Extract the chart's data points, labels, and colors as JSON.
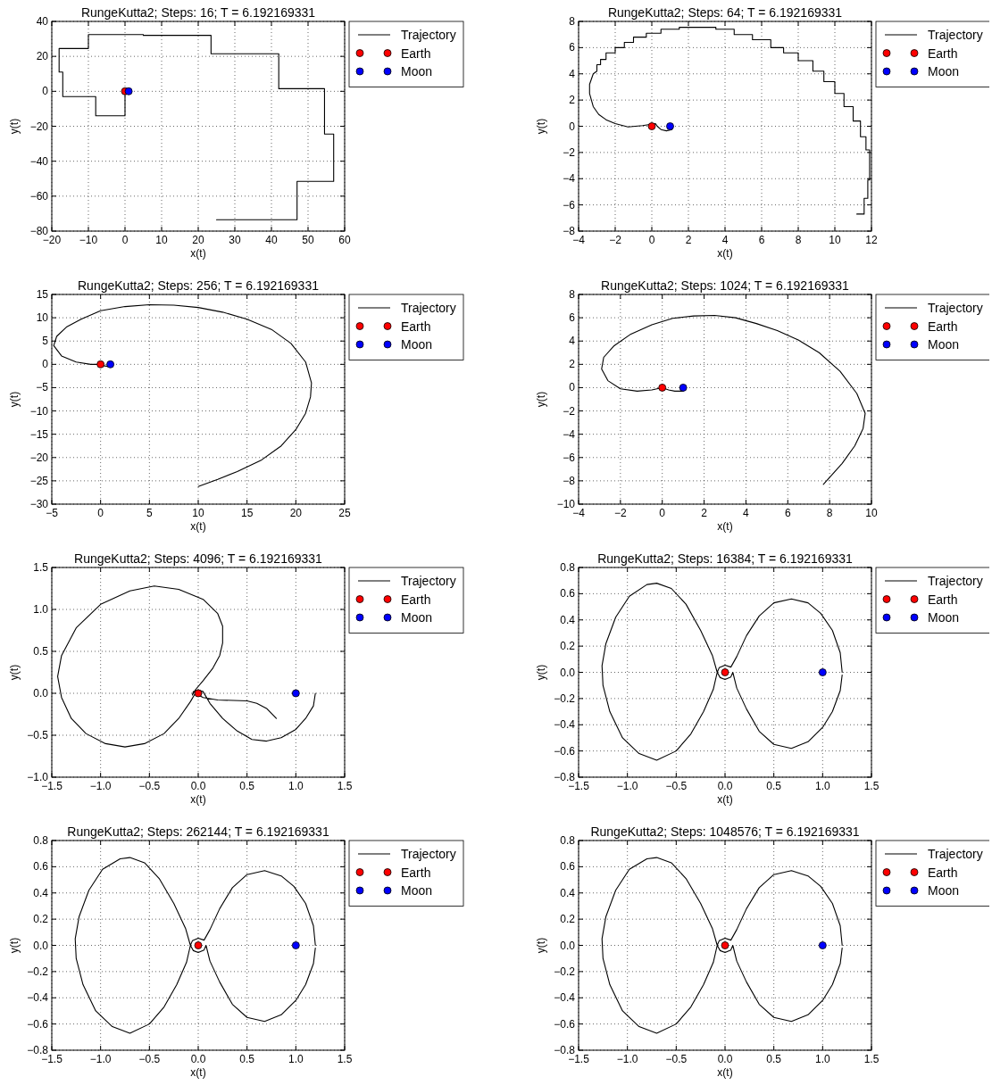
{
  "chart_data": [
    {
      "type": "line",
      "title": "RungeKutta2; Steps: 16; T = 6.192169331",
      "xlabel": "x(t)",
      "ylabel": "y(t)",
      "xlim": [
        -20,
        60
      ],
      "xticks": [
        -20,
        -10,
        0,
        10,
        20,
        30,
        40,
        50,
        60
      ],
      "ylim": [
        -80,
        40
      ],
      "yticks": [
        -80,
        -60,
        -40,
        -20,
        0,
        20,
        40
      ],
      "grid": true,
      "legend": "top right",
      "series": [
        {
          "name": "Trajectory",
          "type": "line",
          "color": "#000000",
          "marker": "none",
          "x": [
            0,
            0,
            -8,
            -8,
            -17,
            -17,
            -18,
            -18,
            -10,
            -10,
            5,
            5,
            23.5,
            23.5,
            42,
            42,
            54.5,
            54.5,
            57,
            57,
            47,
            47,
            25
          ],
          "values": [
            0,
            -14,
            -14,
            -3,
            -3,
            11,
            11,
            24.5,
            24.5,
            32.5,
            32.5,
            32,
            32,
            21.5,
            21.5,
            1.5,
            1.5,
            -24.5,
            -24.5,
            -51.5,
            -51.5,
            -73.5,
            -73.5
          ]
        },
        {
          "name": "Earth",
          "type": "scatter",
          "color": "#ff0000",
          "marker": "circle",
          "x": [
            0
          ],
          "values": [
            0
          ]
        },
        {
          "name": "Moon",
          "type": "scatter",
          "color": "#0000ff",
          "marker": "circle",
          "x": [
            1
          ],
          "values": [
            0
          ]
        }
      ]
    },
    {
      "type": "line",
      "title": "RungeKutta2; Steps: 64; T = 6.192169331",
      "xlabel": "x(t)",
      "ylabel": "y(t)",
      "xlim": [
        -4,
        12
      ],
      "xticks": [
        -4,
        -2,
        0,
        2,
        4,
        6,
        8,
        10,
        12
      ],
      "ylim": [
        -8,
        8
      ],
      "yticks": [
        -8,
        -6,
        -4,
        -2,
        0,
        2,
        4,
        6,
        8
      ],
      "grid": true,
      "legend": "top right",
      "series": [
        {
          "name": "Trajectory",
          "type": "line",
          "color": "#000000",
          "marker": "none",
          "x": [
            1.15,
            1.1,
            0.8,
            0.5,
            0.3,
            0.2,
            -0.5,
            -1.3,
            -2,
            -2.5,
            -2.9,
            -3.2,
            -3.4,
            -3.4,
            -3.2,
            -3,
            -3,
            -2.8,
            -2.8,
            -2.5,
            -2.5,
            -2,
            -2,
            -1.5,
            -1.5,
            -1,
            -1,
            -0.3,
            -0.3,
            0.5,
            0.5,
            1.5,
            1.5,
            3.5,
            3.5,
            4.5,
            4.5,
            5.5,
            5.5,
            6.5,
            6.5,
            7.2,
            7.2,
            8,
            8,
            8.8,
            8.8,
            9.4,
            9.4,
            10,
            10,
            10.5,
            10.5,
            11,
            11,
            11.4,
            11.4,
            11.7,
            11.7,
            11.9,
            11.9,
            11.8,
            11.8,
            11.6,
            11.6,
            11.2
          ],
          "values": [
            0,
            -0.25,
            -0.35,
            -0.25,
            0,
            0.2,
            0.05,
            -0.05,
            0.2,
            0.5,
            0.9,
            1.5,
            2.5,
            3.2,
            4,
            4.2,
            4.7,
            4.7,
            5.1,
            5.1,
            5.6,
            5.6,
            6,
            6,
            6.4,
            6.4,
            6.8,
            6.8,
            7.1,
            7.1,
            7.4,
            7.4,
            7.55,
            7.55,
            7.4,
            7.4,
            7,
            7,
            6.6,
            6.6,
            6,
            6,
            5.6,
            5.6,
            5,
            5,
            4.2,
            4.2,
            3.4,
            3.4,
            2.5,
            2.5,
            1.5,
            1.5,
            0.4,
            0.4,
            -0.8,
            -0.8,
            -1.8,
            -1.8,
            -4.1,
            -4.1,
            -5.5,
            -5.5,
            -6.7,
            -6.7
          ]
        },
        {
          "name": "Earth",
          "type": "scatter",
          "color": "#ff0000",
          "marker": "circle",
          "x": [
            0
          ],
          "values": [
            0
          ]
        },
        {
          "name": "Moon",
          "type": "scatter",
          "color": "#0000ff",
          "marker": "circle",
          "x": [
            1
          ],
          "values": [
            0
          ]
        }
      ]
    },
    {
      "type": "line",
      "title": "RungeKutta2; Steps: 256; T = 6.192169331",
      "xlabel": "x(t)",
      "ylabel": "y(t)",
      "xlim": [
        -5,
        25
      ],
      "xticks": [
        -5,
        0,
        5,
        10,
        15,
        20,
        25
      ],
      "ylim": [
        -30,
        15
      ],
      "yticks": [
        -30,
        -25,
        -20,
        -15,
        -10,
        -5,
        0,
        5,
        10,
        15
      ],
      "grid": true,
      "legend": "top right",
      "series": [
        {
          "name": "Trajectory",
          "type": "line",
          "color": "#000000",
          "marker": "none",
          "x": [
            1.2,
            0.9,
            0.3,
            0,
            -1,
            -2.5,
            -4,
            -4.8,
            -4.5,
            -3.5,
            -2,
            0,
            2.5,
            5,
            7.5,
            10,
            12.5,
            15,
            17.5,
            19.5,
            21,
            21.6,
            21.5,
            21,
            20,
            18.5,
            16.5,
            14,
            12,
            10
          ],
          "values": [
            0,
            -0.5,
            -0.3,
            0,
            0,
            0.5,
            1.8,
            4,
            6,
            8,
            9.7,
            11.5,
            12.4,
            12.8,
            12.7,
            12.2,
            11.2,
            9.7,
            7.5,
            4.5,
            0.5,
            -4,
            -7,
            -10.5,
            -14,
            -17.5,
            -20.5,
            -23,
            -24.7,
            -26.2
          ]
        },
        {
          "name": "Earth",
          "type": "scatter",
          "color": "#ff0000",
          "marker": "circle",
          "x": [
            0
          ],
          "values": [
            0
          ]
        },
        {
          "name": "Moon",
          "type": "scatter",
          "color": "#0000ff",
          "marker": "circle",
          "x": [
            1
          ],
          "values": [
            0
          ]
        }
      ]
    },
    {
      "type": "line",
      "title": "RungeKutta2; Steps: 1024; T = 6.192169331",
      "xlabel": "x(t)",
      "ylabel": "y(t)",
      "xlim": [
        -4,
        10
      ],
      "xticks": [
        -4,
        -2,
        0,
        2,
        4,
        6,
        8,
        10
      ],
      "ylim": [
        -10,
        8
      ],
      "yticks": [
        -10,
        -8,
        -6,
        -4,
        -2,
        0,
        2,
        4,
        6,
        8
      ],
      "grid": true,
      "legend": "top right",
      "series": [
        {
          "name": "Trajectory",
          "type": "line",
          "color": "#000000",
          "marker": "none",
          "x": [
            1.15,
            1,
            0.6,
            0.3,
            0,
            -0.5,
            -1.2,
            -2,
            -2.6,
            -2.9,
            -2.8,
            -2.3,
            -1.5,
            -0.5,
            0.5,
            1.5,
            2.5,
            3.5,
            4.5,
            5.5,
            6.5,
            7.5,
            8.5,
            9.3,
            9.7,
            9.6,
            9.2,
            8.6,
            7.7
          ],
          "values": [
            0,
            -0.3,
            -0.3,
            -0.2,
            0,
            -0.2,
            -0.3,
            -0.1,
            0.6,
            1.6,
            2.6,
            3.6,
            4.6,
            5.4,
            5.95,
            6.15,
            6.2,
            6,
            5.5,
            4.9,
            4.1,
            3,
            1.4,
            -0.5,
            -2.2,
            -3.5,
            -5,
            -6.5,
            -8.3
          ]
        },
        {
          "name": "Earth",
          "type": "scatter",
          "color": "#ff0000",
          "marker": "circle",
          "x": [
            0
          ],
          "values": [
            0
          ]
        },
        {
          "name": "Moon",
          "type": "scatter",
          "color": "#0000ff",
          "marker": "circle",
          "x": [
            1
          ],
          "values": [
            0
          ]
        }
      ]
    },
    {
      "type": "line",
      "title": "RungeKutta2; Steps: 4096; T = 6.192169331",
      "xlabel": "x(t)",
      "ylabel": "y(t)",
      "xlim": [
        -1.5,
        1.5
      ],
      "xticks": [
        {
          "value": -1.5,
          "label": "−1.5"
        },
        {
          "value": -1,
          "label": "−1.0"
        },
        {
          "value": -0.5,
          "label": "−0.5"
        },
        {
          "value": 0,
          "label": "0.0"
        },
        {
          "value": 0.5,
          "label": "0.5"
        },
        {
          "value": 1,
          "label": "1.0"
        },
        {
          "value": 1.5,
          "label": "1.5"
        }
      ],
      "ylim": [
        -1,
        1.5
      ],
      "yticks": [
        {
          "value": -1,
          "label": "−1.0"
        },
        {
          "value": -0.5,
          "label": "−0.5"
        },
        {
          "value": 0,
          "label": "0.0"
        },
        {
          "value": 0.5,
          "label": "0.5"
        },
        {
          "value": 1,
          "label": "1.0"
        },
        {
          "value": 1.5,
          "label": "1.5"
        }
      ],
      "grid": true,
      "legend": "top right",
      "series": [
        {
          "name": "Trajectory",
          "type": "line",
          "color": "#000000",
          "marker": "none",
          "x": [
            1.2,
            1.18,
            1.1,
            1,
            0.85,
            0.7,
            0.55,
            0.4,
            0.25,
            0.12,
            0.05,
            0,
            -0.05,
            -0.06,
            -0.03,
            0.05,
            0.15,
            0.22,
            0.25,
            0.25,
            0.2,
            0.05,
            -0.2,
            -0.45,
            -0.7,
            -1,
            -1.25,
            -1.4,
            -1.44,
            -1.4,
            -1.3,
            -1.15,
            -0.95,
            -0.75,
            -0.55,
            -0.35,
            -0.2,
            -0.08,
            -0.03,
            0.05,
            0.2,
            0.5,
            0.6,
            0.7,
            0.8
          ],
          "values": [
            0,
            -0.15,
            -0.3,
            -0.43,
            -0.53,
            -0.57,
            -0.55,
            -0.45,
            -0.3,
            -0.12,
            0.02,
            0.04,
            0.02,
            -0.02,
            0.04,
            0.15,
            0.3,
            0.45,
            0.6,
            0.8,
            0.95,
            1.12,
            1.24,
            1.28,
            1.22,
            1.06,
            0.78,
            0.45,
            0.2,
            -0.05,
            -0.3,
            -0.48,
            -0.6,
            -0.64,
            -0.6,
            -0.48,
            -0.3,
            -0.1,
            0,
            -0.05,
            -0.08,
            -0.09,
            -0.12,
            -0.18,
            -0.3
          ]
        },
        {
          "name": "Earth",
          "type": "scatter",
          "color": "#ff0000",
          "marker": "circle",
          "x": [
            0
          ],
          "values": [
            0
          ]
        },
        {
          "name": "Moon",
          "type": "scatter",
          "color": "#0000ff",
          "marker": "circle",
          "x": [
            1
          ],
          "values": [
            0
          ]
        }
      ]
    },
    {
      "type": "line",
      "title": "RungeKutta2; Steps: 16384; T = 6.192169331",
      "xlabel": "x(t)",
      "ylabel": "y(t)",
      "xlim": [
        -1.5,
        1.5
      ],
      "xticks": [
        {
          "value": -1.5,
          "label": "−1.5"
        },
        {
          "value": -1,
          "label": "−1.0"
        },
        {
          "value": -0.5,
          "label": "−0.5"
        },
        {
          "value": 0,
          "label": "0.0"
        },
        {
          "value": 0.5,
          "label": "0.5"
        },
        {
          "value": 1,
          "label": "1.0"
        },
        {
          "value": 1.5,
          "label": "1.5"
        }
      ],
      "ylim": [
        -0.8,
        0.8
      ],
      "yticks": [
        {
          "value": -0.8,
          "label": "−0.8"
        },
        {
          "value": -0.6,
          "label": "−0.6"
        },
        {
          "value": -0.4,
          "label": "−0.4"
        },
        {
          "value": -0.2,
          "label": "−0.2"
        },
        {
          "value": 0,
          "label": "0.0"
        },
        {
          "value": 0.2,
          "label": "0.2"
        },
        {
          "value": 0.4,
          "label": "0.4"
        },
        {
          "value": 0.6,
          "label": "0.6"
        },
        {
          "value": 0.8,
          "label": "0.8"
        }
      ],
      "grid": true,
      "legend": "top right",
      "series": [
        {
          "name": "Trajectory",
          "type": "line",
          "color": "#000000",
          "marker": "none",
          "x": [
            1.2,
            1.18,
            1.1,
            0.98,
            0.85,
            0.68,
            0.5,
            0.35,
            0.22,
            0.12,
            0.06,
            0,
            -0.06,
            -0.08,
            -0.12,
            -0.22,
            -0.35,
            -0.5,
            -0.7,
            -0.88,
            -1.05,
            -1.18,
            -1.25,
            -1.26,
            -1.22,
            -1.12,
            -0.98,
            -0.8,
            -0.7,
            -0.55,
            -0.4,
            -0.25,
            -0.13,
            -0.08,
            -0.05,
            0,
            0.06,
            0.08,
            0.12,
            0.22,
            0.35,
            0.5,
            0.68,
            0.85,
            1,
            1.1,
            1.18,
            1.2
          ],
          "values": [
            0,
            0.15,
            0.32,
            0.45,
            0.53,
            0.56,
            0.53,
            0.43,
            0.28,
            0.12,
            0.04,
            0.055,
            0.035,
            0,
            -0.13,
            -0.3,
            -0.47,
            -0.6,
            -0.67,
            -0.62,
            -0.5,
            -0.3,
            -0.1,
            0.05,
            0.22,
            0.42,
            0.58,
            0.67,
            0.68,
            0.64,
            0.52,
            0.32,
            0.13,
            0,
            -0.04,
            -0.055,
            -0.035,
            0,
            -0.12,
            -0.28,
            -0.45,
            -0.55,
            -0.58,
            -0.53,
            -0.42,
            -0.3,
            -0.14,
            -0.02
          ]
        },
        {
          "name": "Earth",
          "type": "scatter",
          "color": "#ff0000",
          "marker": "circle",
          "x": [
            0
          ],
          "values": [
            0
          ]
        },
        {
          "name": "Moon",
          "type": "scatter",
          "color": "#0000ff",
          "marker": "circle",
          "x": [
            1
          ],
          "values": [
            0
          ]
        }
      ]
    },
    {
      "type": "line",
      "title": "RungeKutta2; Steps: 262144; T = 6.192169331",
      "xlabel": "x(t)",
      "ylabel": "y(t)",
      "xlim": [
        -1.5,
        1.5
      ],
      "xticks": [
        {
          "value": -1.5,
          "label": "−1.5"
        },
        {
          "value": -1,
          "label": "−1.0"
        },
        {
          "value": -0.5,
          "label": "−0.5"
        },
        {
          "value": 0,
          "label": "0.0"
        },
        {
          "value": 0.5,
          "label": "0.5"
        },
        {
          "value": 1,
          "label": "1.0"
        },
        {
          "value": 1.5,
          "label": "1.5"
        }
      ],
      "ylim": [
        -0.8,
        0.8
      ],
      "yticks": [
        {
          "value": -0.8,
          "label": "−0.8"
        },
        {
          "value": -0.6,
          "label": "−0.6"
        },
        {
          "value": -0.4,
          "label": "−0.4"
        },
        {
          "value": -0.2,
          "label": "−0.2"
        },
        {
          "value": 0,
          "label": "0.0"
        },
        {
          "value": 0.2,
          "label": "0.2"
        },
        {
          "value": 0.4,
          "label": "0.4"
        },
        {
          "value": 0.6,
          "label": "0.6"
        },
        {
          "value": 0.8,
          "label": "0.8"
        }
      ],
      "grid": true,
      "legend": "top right",
      "series": [
        {
          "name": "Trajectory",
          "type": "line",
          "color": "#000000",
          "marker": "none",
          "x": [
            1.2,
            1.18,
            1.1,
            0.98,
            0.85,
            0.68,
            0.5,
            0.35,
            0.22,
            0.12,
            0.06,
            0,
            -0.06,
            -0.08,
            -0.12,
            -0.22,
            -0.35,
            -0.5,
            -0.7,
            -0.88,
            -1.05,
            -1.18,
            -1.25,
            -1.26,
            -1.22,
            -1.12,
            -0.98,
            -0.8,
            -0.7,
            -0.55,
            -0.4,
            -0.25,
            -0.13,
            -0.08,
            -0.05,
            0,
            0.06,
            0.08,
            0.12,
            0.22,
            0.35,
            0.5,
            0.68,
            0.85,
            1,
            1.1,
            1.18,
            1.2
          ],
          "values": [
            0,
            0.15,
            0.32,
            0.45,
            0.53,
            0.57,
            0.54,
            0.44,
            0.28,
            0.12,
            0.04,
            0.055,
            0.035,
            0,
            -0.13,
            -0.3,
            -0.47,
            -0.6,
            -0.67,
            -0.62,
            -0.5,
            -0.3,
            -0.1,
            0.05,
            0.22,
            0.42,
            0.58,
            0.66,
            0.67,
            0.63,
            0.51,
            0.32,
            0.13,
            0,
            -0.04,
            -0.055,
            -0.035,
            0,
            -0.12,
            -0.28,
            -0.45,
            -0.55,
            -0.58,
            -0.53,
            -0.42,
            -0.3,
            -0.14,
            -0.02
          ]
        },
        {
          "name": "Earth",
          "type": "scatter",
          "color": "#ff0000",
          "marker": "circle",
          "x": [
            0
          ],
          "values": [
            0
          ]
        },
        {
          "name": "Moon",
          "type": "scatter",
          "color": "#0000ff",
          "marker": "circle",
          "x": [
            1
          ],
          "values": [
            0
          ]
        }
      ]
    },
    {
      "type": "line",
      "title": "RungeKutta2; Steps: 1048576; T = 6.192169331",
      "xlabel": "x(t)",
      "ylabel": "y(t)",
      "xlim": [
        -1.5,
        1.5
      ],
      "xticks": [
        {
          "value": -1.5,
          "label": "−1.5"
        },
        {
          "value": -1,
          "label": "−1.0"
        },
        {
          "value": -0.5,
          "label": "−0.5"
        },
        {
          "value": 0,
          "label": "0.0"
        },
        {
          "value": 0.5,
          "label": "0.5"
        },
        {
          "value": 1,
          "label": "1.0"
        },
        {
          "value": 1.5,
          "label": "1.5"
        }
      ],
      "ylim": [
        -0.8,
        0.8
      ],
      "yticks": [
        {
          "value": -0.8,
          "label": "−0.8"
        },
        {
          "value": -0.6,
          "label": "−0.6"
        },
        {
          "value": -0.4,
          "label": "−0.4"
        },
        {
          "value": -0.2,
          "label": "−0.2"
        },
        {
          "value": 0,
          "label": "0.0"
        },
        {
          "value": 0.2,
          "label": "0.2"
        },
        {
          "value": 0.4,
          "label": "0.4"
        },
        {
          "value": 0.6,
          "label": "0.6"
        },
        {
          "value": 0.8,
          "label": "0.8"
        }
      ],
      "grid": true,
      "legend": "top right",
      "series": [
        {
          "name": "Trajectory",
          "type": "line",
          "color": "#000000",
          "marker": "none",
          "x": [
            1.2,
            1.18,
            1.1,
            0.98,
            0.85,
            0.68,
            0.5,
            0.35,
            0.22,
            0.12,
            0.06,
            0,
            -0.06,
            -0.08,
            -0.12,
            -0.22,
            -0.35,
            -0.5,
            -0.7,
            -0.88,
            -1.05,
            -1.18,
            -1.25,
            -1.26,
            -1.22,
            -1.12,
            -0.98,
            -0.8,
            -0.7,
            -0.55,
            -0.4,
            -0.25,
            -0.13,
            -0.08,
            -0.05,
            0,
            0.06,
            0.08,
            0.12,
            0.22,
            0.35,
            0.5,
            0.68,
            0.85,
            1,
            1.1,
            1.18,
            1.2
          ],
          "values": [
            0,
            0.15,
            0.32,
            0.45,
            0.53,
            0.57,
            0.54,
            0.44,
            0.28,
            0.12,
            0.04,
            0.055,
            0.035,
            0,
            -0.13,
            -0.3,
            -0.47,
            -0.6,
            -0.67,
            -0.62,
            -0.5,
            -0.3,
            -0.1,
            0.05,
            0.22,
            0.42,
            0.58,
            0.66,
            0.67,
            0.63,
            0.51,
            0.32,
            0.13,
            0,
            -0.04,
            -0.055,
            -0.035,
            0,
            -0.12,
            -0.28,
            -0.45,
            -0.55,
            -0.58,
            -0.53,
            -0.42,
            -0.3,
            -0.14,
            -0.02
          ]
        },
        {
          "name": "Earth",
          "type": "scatter",
          "color": "#ff0000",
          "marker": "circle",
          "x": [
            0
          ],
          "values": [
            0
          ]
        },
        {
          "name": "Moon",
          "type": "scatter",
          "color": "#0000ff",
          "marker": "circle",
          "x": [
            1
          ],
          "values": [
            0
          ]
        }
      ]
    }
  ]
}
